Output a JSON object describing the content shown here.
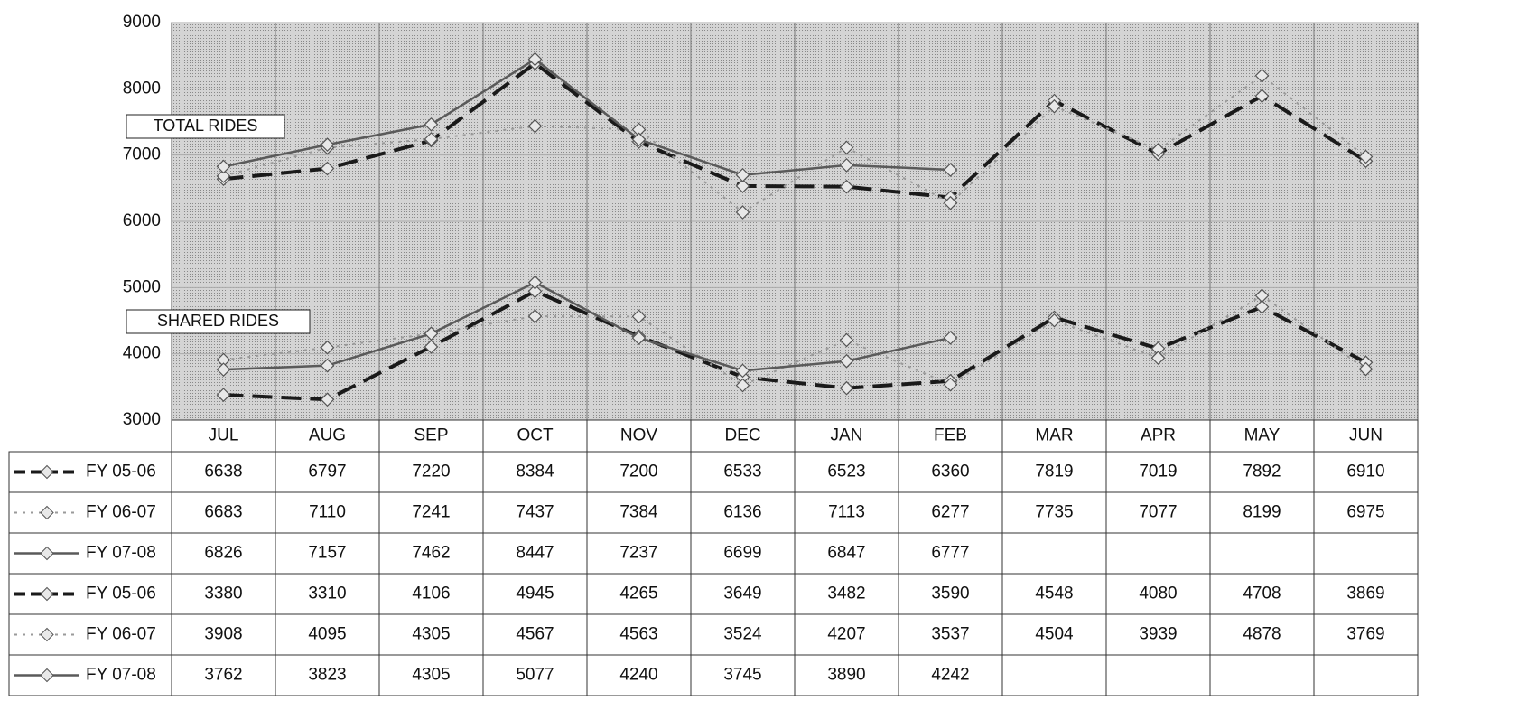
{
  "chart_data": {
    "type": "line",
    "categories": [
      "JUL",
      "AUG",
      "SEP",
      "OCT",
      "NOV",
      "DEC",
      "JAN",
      "FEB",
      "MAR",
      "APR",
      "MAY",
      "JUN"
    ],
    "series": [
      {
        "name": "FY 05-06",
        "color": "#1a1a1a",
        "style": "dashed",
        "values": [
          6638,
          6797,
          7220,
          8384,
          7200,
          6533,
          6523,
          6360,
          7819,
          7019,
          7892,
          6910
        ]
      },
      {
        "name": "FY 06-07",
        "color": "#9a9a9a",
        "style": "dotted",
        "values": [
          6683,
          7110,
          7241,
          7437,
          7384,
          6136,
          7113,
          6277,
          7735,
          7077,
          8199,
          6975
        ]
      },
      {
        "name": "FY 07-08",
        "color": "#5a5a5a",
        "style": "solid",
        "values": [
          6826,
          7157,
          7462,
          8447,
          7237,
          6699,
          6847,
          6777,
          null,
          null,
          null,
          null
        ]
      },
      {
        "name": "FY 05-06",
        "color": "#1a1a1a",
        "style": "dashed",
        "values": [
          3380,
          3310,
          4106,
          4945,
          4265,
          3649,
          3482,
          3590,
          4548,
          4080,
          4708,
          3869
        ]
      },
      {
        "name": "FY 06-07",
        "color": "#9a9a9a",
        "style": "dotted",
        "values": [
          3908,
          4095,
          4305,
          4567,
          4563,
          3524,
          4207,
          3537,
          4504,
          3939,
          4878,
          3769
        ]
      },
      {
        "name": "FY 07-08",
        "color": "#5a5a5a",
        "style": "solid",
        "values": [
          3762,
          3823,
          4305,
          5077,
          4240,
          3745,
          3890,
          4242,
          null,
          null,
          null,
          null
        ]
      }
    ],
    "annotations": [
      "TOTAL RIDES",
      "SHARED RIDES"
    ],
    "ylim": [
      3000,
      9000
    ],
    "yticks": [
      3000,
      4000,
      5000,
      6000,
      7000,
      8000,
      9000
    ],
    "grid": true
  }
}
